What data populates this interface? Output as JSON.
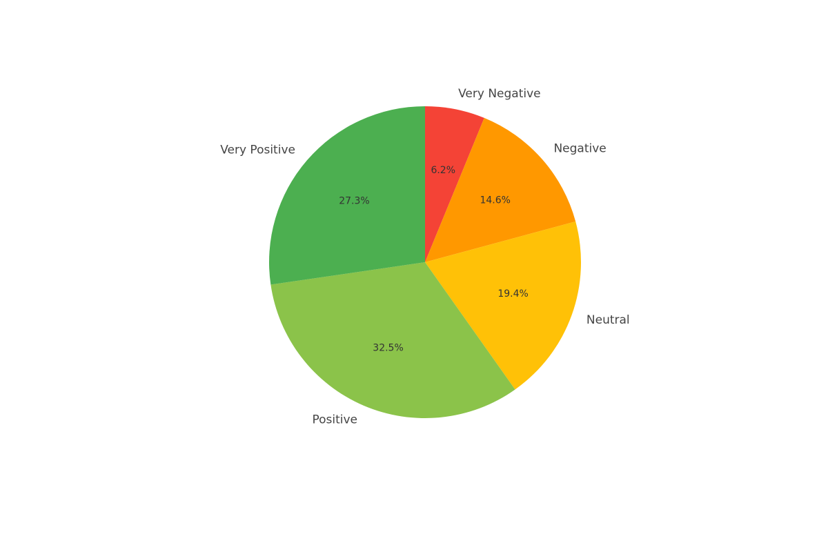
{
  "chart_data": {
    "type": "pie",
    "title": "",
    "categories": [
      "Very Negative",
      "Negative",
      "Neutral",
      "Positive",
      "Very Positive"
    ],
    "values": [
      6.2,
      14.6,
      19.4,
      32.5,
      27.3
    ],
    "value_labels": [
      "6.2%",
      "14.6%",
      "19.4%",
      "32.5%",
      "27.3%"
    ],
    "colors": [
      "#f44336",
      "#ff9800",
      "#ffc107",
      "#8bc34a",
      "#4caf50"
    ],
    "start_angle_deg": 90,
    "direction": "clockwise",
    "legend": "none"
  }
}
